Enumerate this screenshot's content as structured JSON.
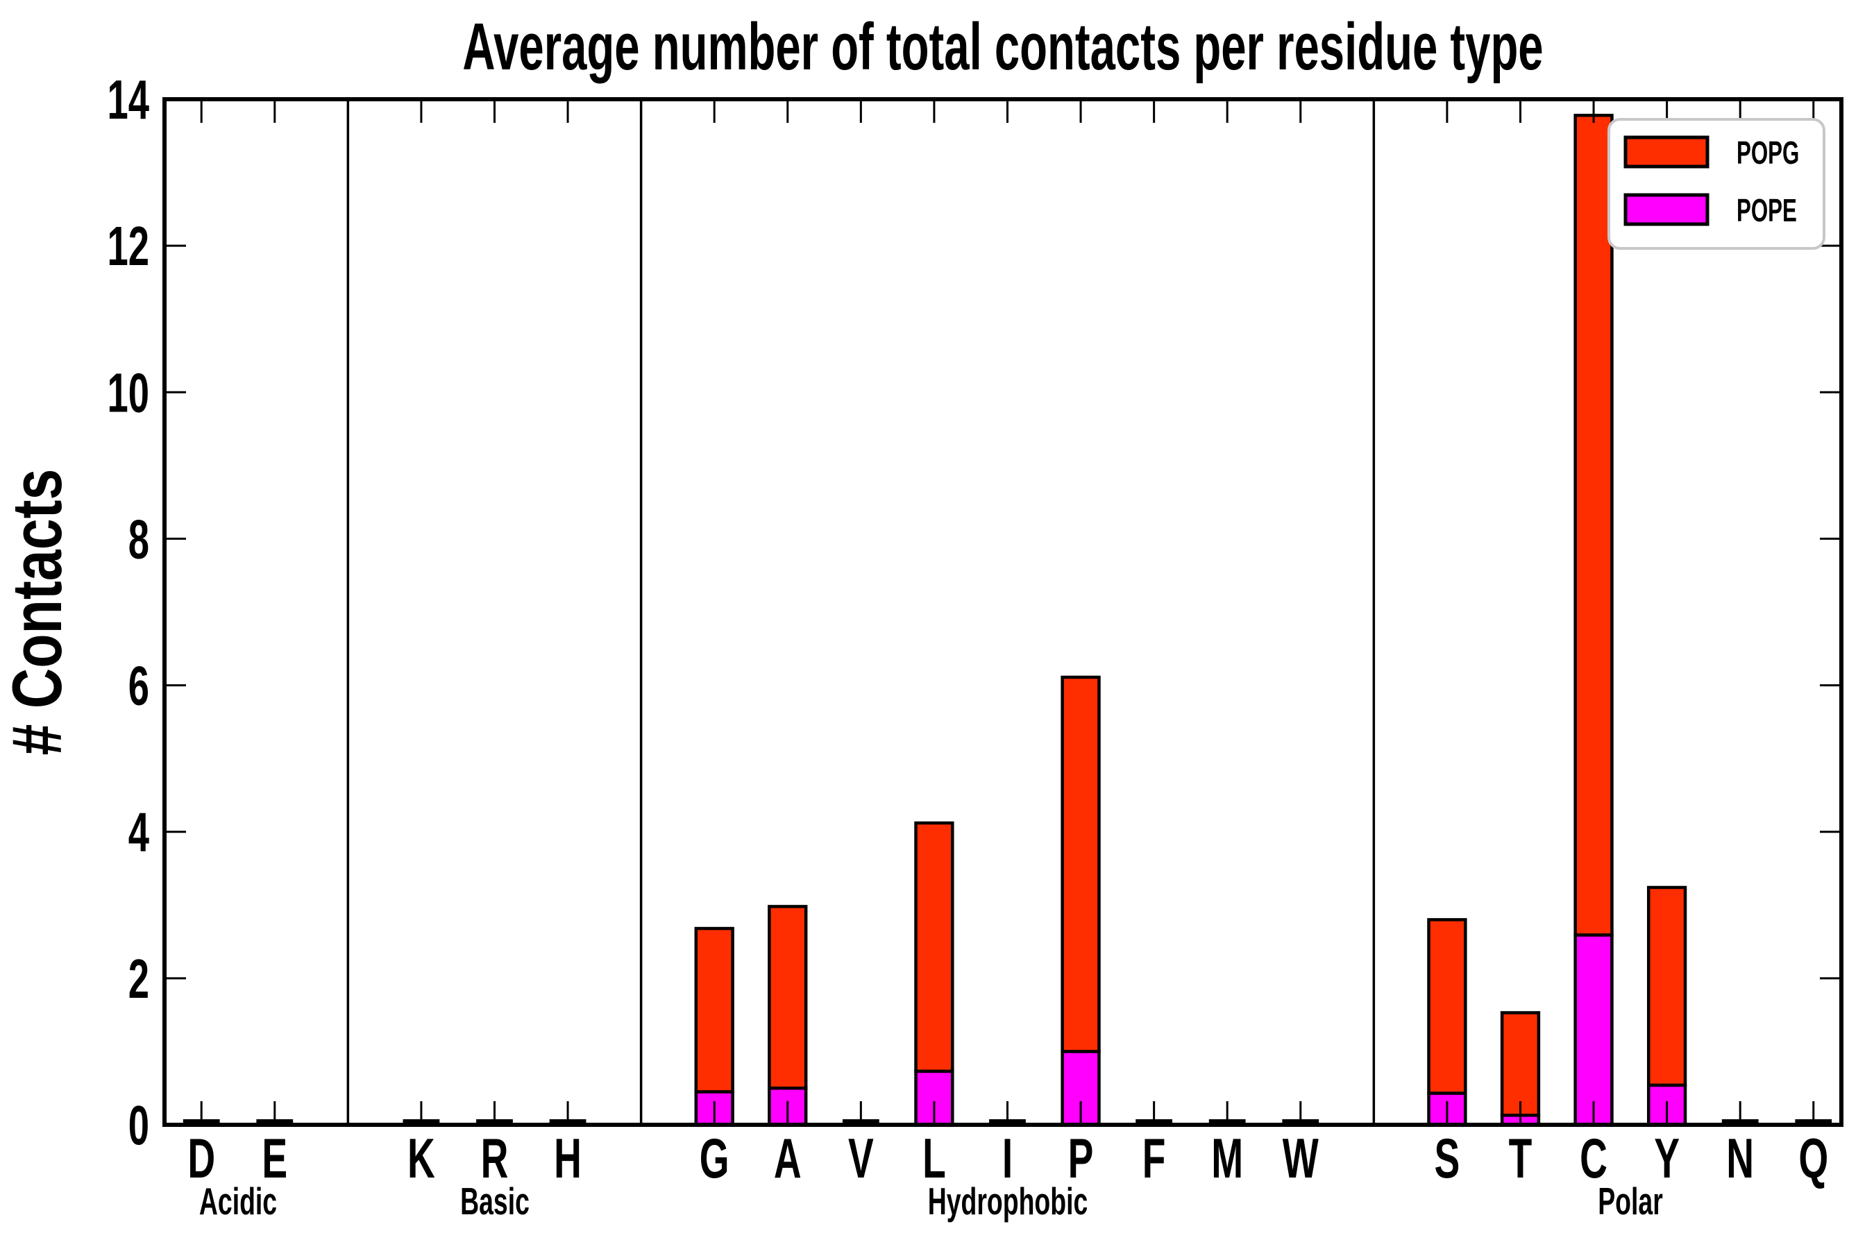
{
  "chart_data": {
    "type": "bar",
    "stacked": true,
    "title": "Average number of total contacts per residue type",
    "xlabel": "",
    "ylabel": "# Contacts",
    "ylim": [
      0,
      14
    ],
    "yticks": [
      0,
      2,
      4,
      6,
      8,
      10,
      12,
      14
    ],
    "grid": false,
    "legend_position": "upper right",
    "categories": [
      "D",
      "E",
      "K",
      "R",
      "H",
      "G",
      "A",
      "V",
      "L",
      "I",
      "P",
      "F",
      "M",
      "W",
      "S",
      "T",
      "C",
      "Y",
      "N",
      "Q"
    ],
    "groups": [
      {
        "label": "Acidic",
        "residues": [
          "D",
          "E"
        ]
      },
      {
        "label": "Basic",
        "residues": [
          "K",
          "R",
          "H"
        ]
      },
      {
        "label": "Hydrophobic",
        "residues": [
          "G",
          "A",
          "V",
          "L",
          "I",
          "P",
          "F",
          "M",
          "W"
        ]
      },
      {
        "label": "Polar",
        "residues": [
          "S",
          "T",
          "C",
          "Y",
          "N",
          "Q"
        ]
      }
    ],
    "series": [
      {
        "name": "POPG",
        "color": "#FF2E00",
        "values": [
          0.01,
          0.01,
          0.01,
          0.01,
          0.01,
          2.23,
          2.48,
          0.015,
          3.39,
          0.015,
          5.11,
          0.01,
          0.01,
          0.01,
          2.37,
          1.4,
          11.19,
          2.7,
          0.01,
          0.01
        ]
      },
      {
        "name": "POPE",
        "color": "#FF00FF",
        "values": [
          0.01,
          0.01,
          0.01,
          0.01,
          0.01,
          0.45,
          0.5,
          0.015,
          0.73,
          0.015,
          1.0,
          0.01,
          0.01,
          0.01,
          0.43,
          0.13,
          2.59,
          0.54,
          0.01,
          0.01
        ]
      }
    ],
    "totals": [
      0.02,
      0.02,
      0.02,
      0.02,
      0.02,
      2.68,
      2.98,
      0.03,
      4.12,
      0.03,
      6.11,
      0.02,
      0.02,
      0.02,
      2.8,
      1.53,
      13.78,
      3.24,
      0.02,
      0.02
    ],
    "edge_color": "#000000",
    "axis_color": "#000000",
    "legend_border_color": "#c8c8c8"
  }
}
